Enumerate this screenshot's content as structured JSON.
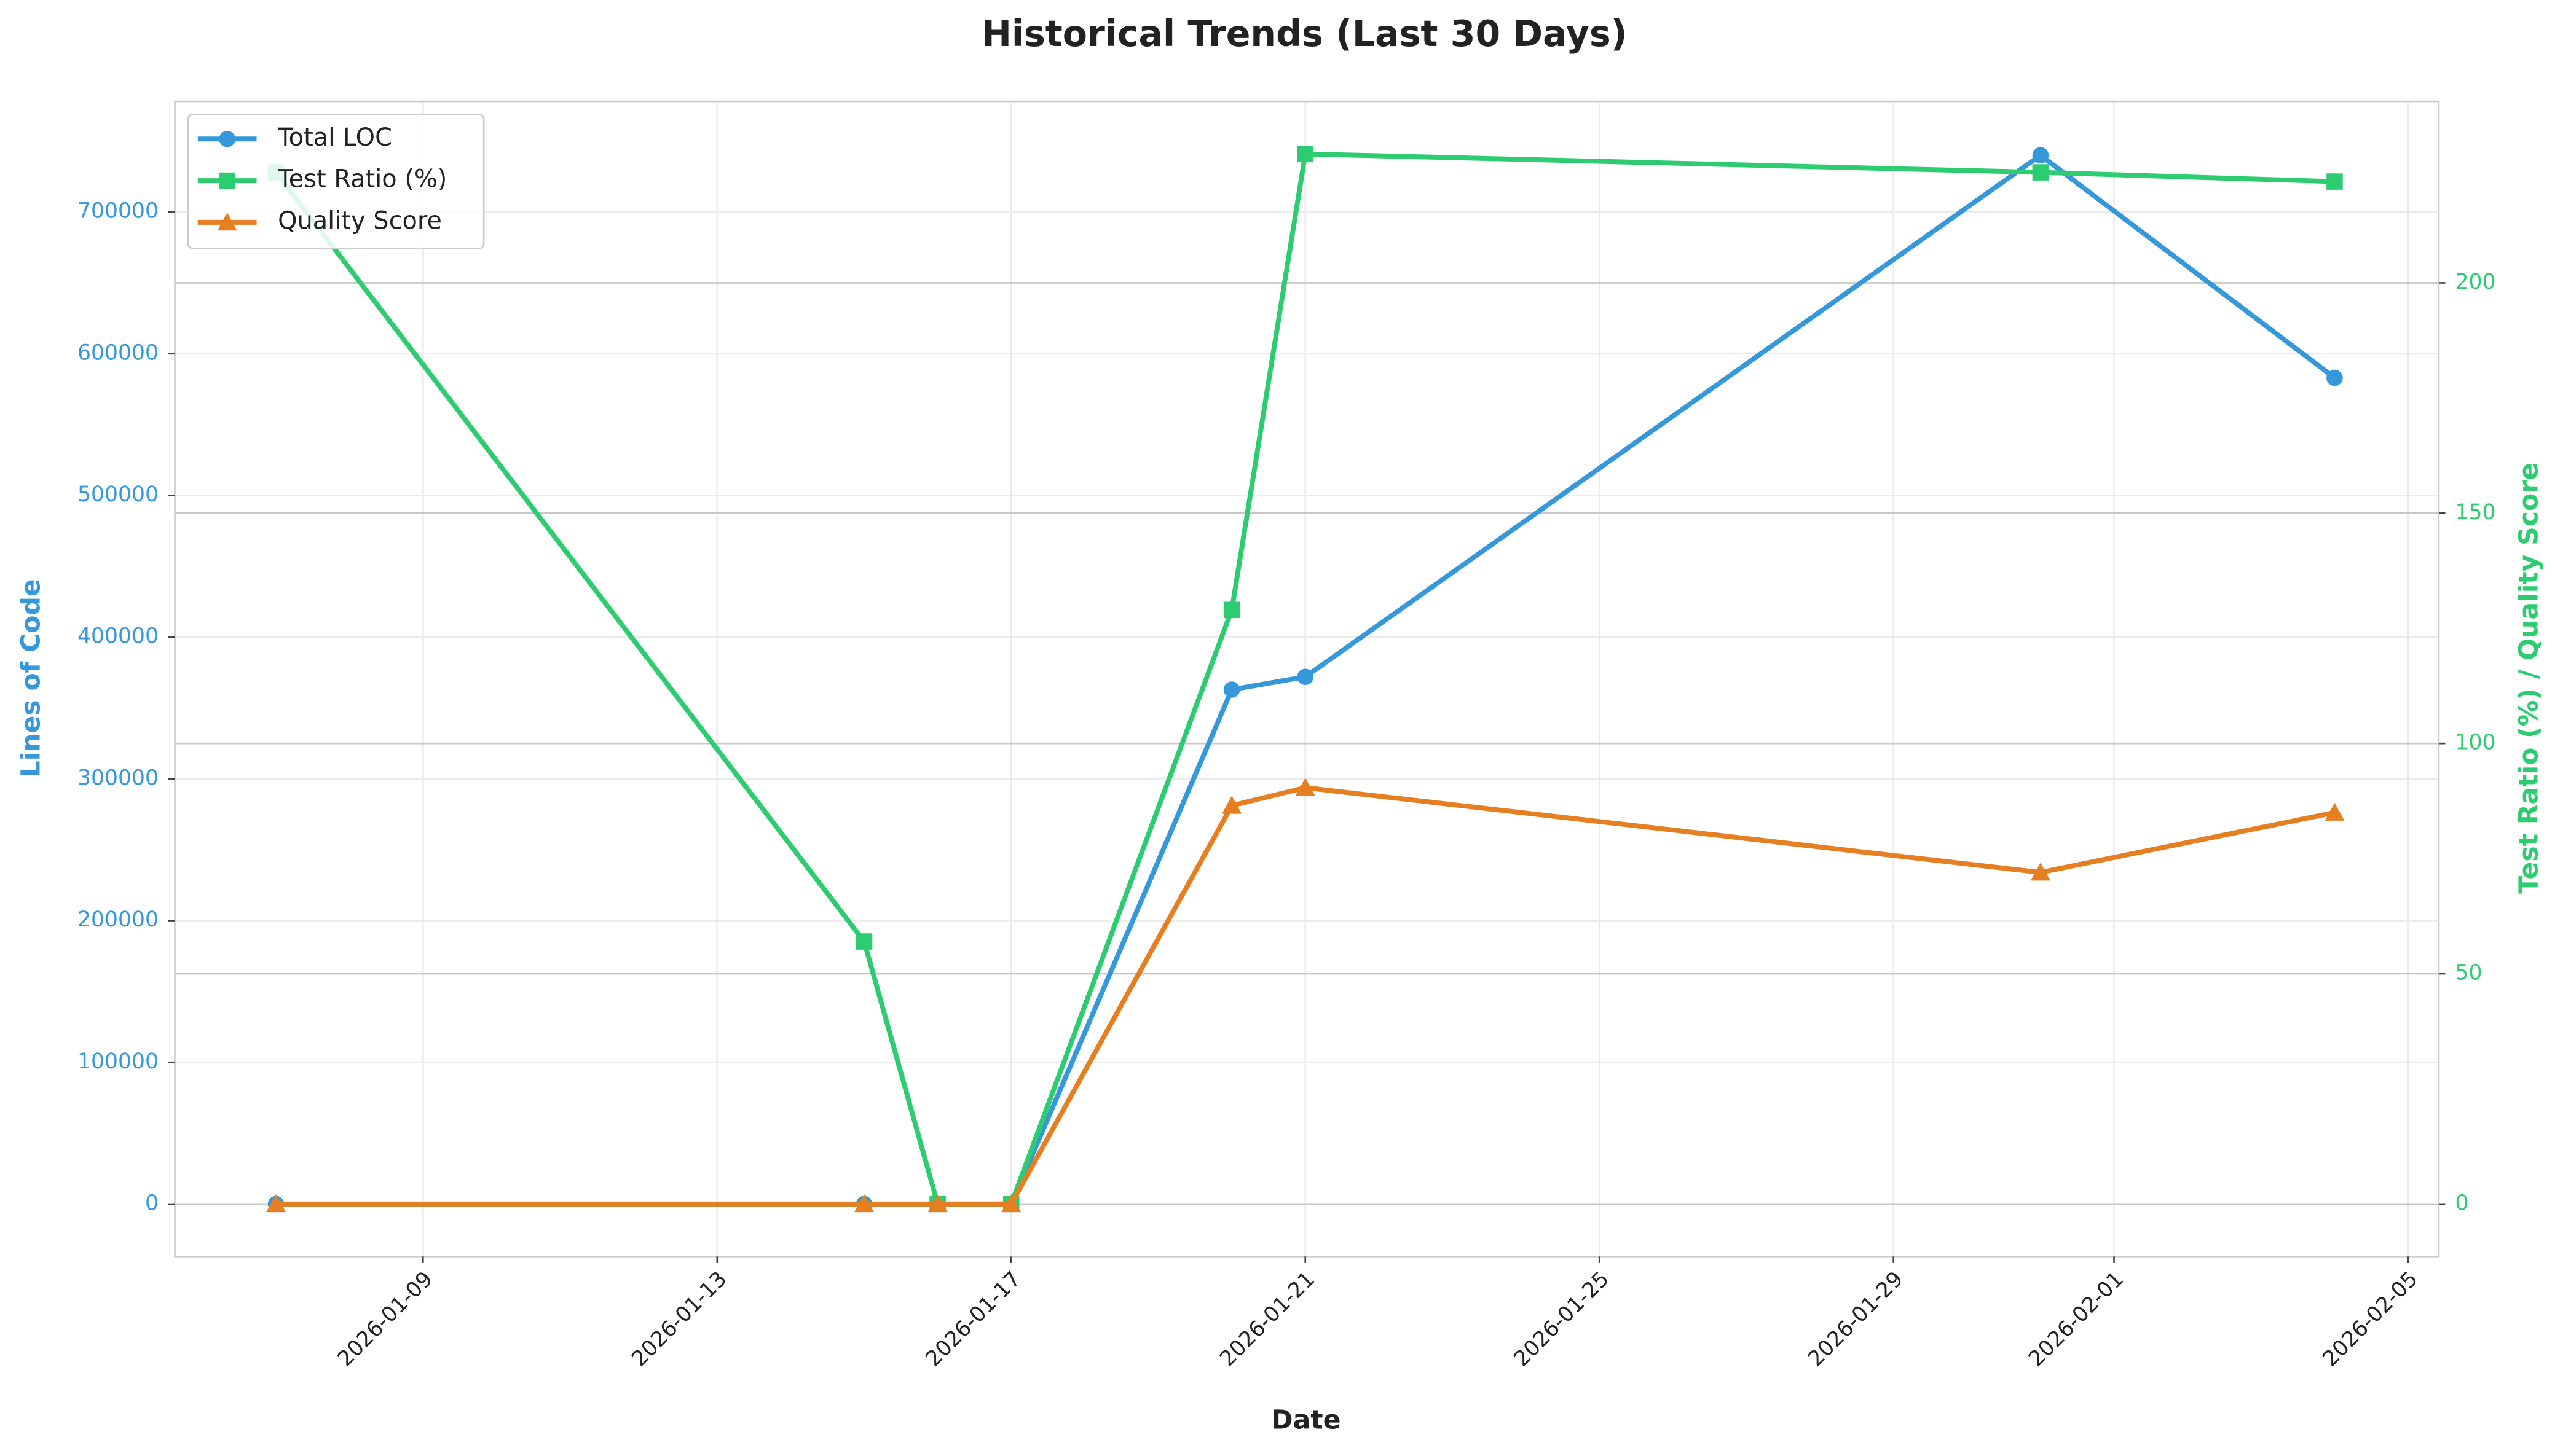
{
  "chart_data": {
    "type": "line",
    "title": "Historical Trends (Last 30 Days)",
    "x_label": "Date",
    "y_label": "Lines of Code",
    "y2_label": "Test Ratio (%) / Quality Score",
    "x": [
      "2026-01-07",
      "2026-01-15",
      "2026-01-16",
      "2026-01-17",
      "2026-01-20",
      "2026-01-21",
      "2026-01-31",
      "2026-02-04"
    ],
    "series": [
      {
        "name": "Total LOC",
        "color": "#3498db",
        "marker": "circle",
        "values": [
          0,
          0,
          0,
          0,
          363000,
          372000,
          740000,
          583000
        ]
      },
      {
        "name": "Test Ratio (%)",
        "color": "#2ecc71",
        "marker": "square",
        "axis": "y2",
        "values": [
          224,
          57,
          0,
          0,
          129,
          228,
          224,
          222
        ]
      },
      {
        "name": "Quality Score",
        "color": "#e67e22",
        "marker": "triangle",
        "axis": "y2",
        "values": [
          0,
          0,
          0,
          0,
          86.5,
          90.4,
          72,
          85
        ]
      }
    ],
    "xlim": [
      "2026-01-05T15:00:00Z",
      "2026-02-05T10:00:00Z"
    ],
    "xticks": [
      "2026-01-09",
      "2026-01-13",
      "2026-01-17",
      "2026-01-21",
      "2026-01-25",
      "2026-01-29",
      "2026-02-01",
      "2026-02-05"
    ],
    "ylim": [
      -37000,
      778000
    ],
    "yticks": [
      0,
      100000,
      200000,
      300000,
      400000,
      500000,
      600000,
      700000
    ],
    "y2lim": [
      -11.4,
      239.4
    ],
    "y2ticks": [
      0,
      50,
      100,
      150,
      200
    ],
    "grid": true,
    "legend": "upper left"
  }
}
